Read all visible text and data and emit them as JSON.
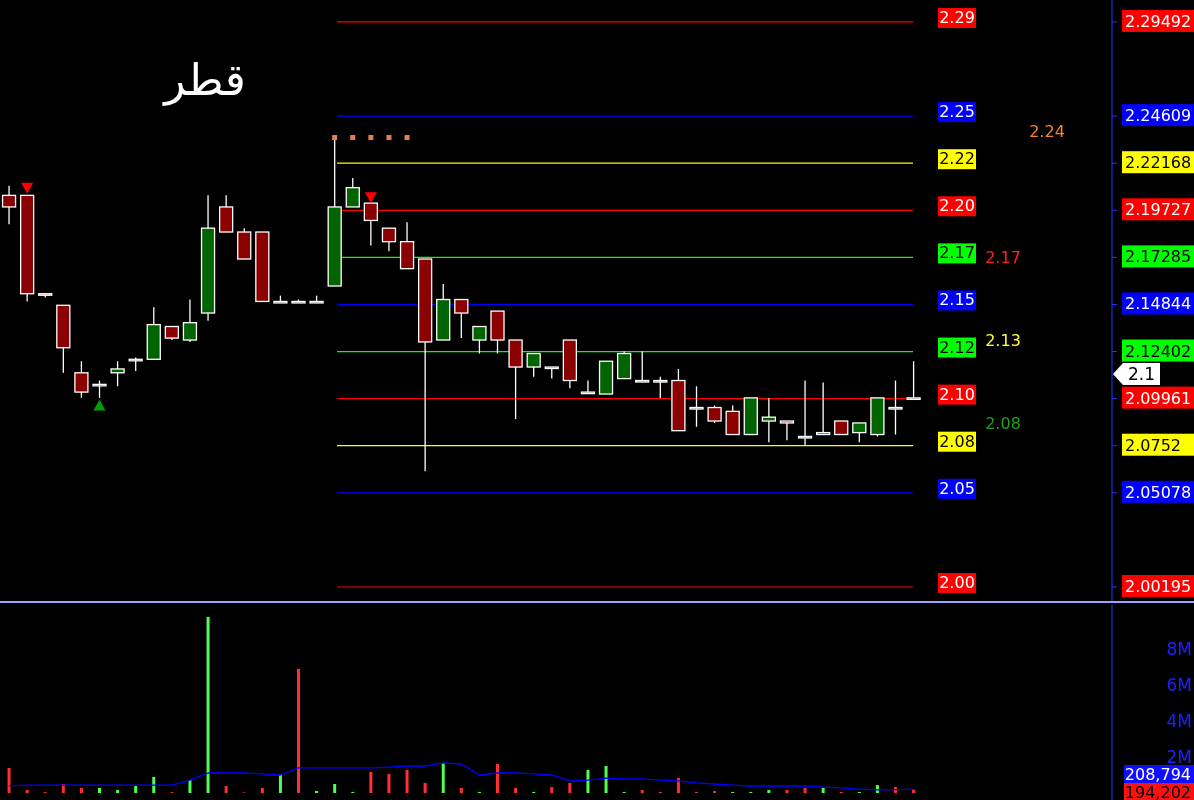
{
  "chart_data": [
    {
      "type": "candlestick",
      "title": "قطر",
      "tick_labels": "y",
      "grid": false,
      "categories": [
        null,
        null,
        null,
        null,
        null,
        null,
        null,
        null,
        null,
        null,
        null,
        null,
        null,
        null,
        null,
        null,
        null,
        null,
        null,
        null,
        null,
        null,
        null,
        null,
        null,
        null,
        null,
        null,
        null,
        null,
        null,
        null,
        null,
        null,
        null,
        null,
        null,
        null,
        null,
        null,
        null,
        null,
        null,
        null,
        null,
        null,
        null,
        null,
        null,
        null,
        null,
        null,
        null,
        null,
        null,
        null,
        null,
        null,
        null,
        null,
        null,
        null,
        null,
        null,
        null,
        null
      ],
      "ohlc": [
        [
          2.205,
          2.21,
          2.19,
          2.199
        ],
        [
          2.205,
          2.205,
          2.15,
          2.154
        ],
        [
          2.154,
          2.154,
          2.152,
          2.154
        ],
        [
          2.148,
          2.148,
          2.113,
          2.126
        ],
        [
          2.113,
          2.119,
          2.1,
          2.103
        ],
        [
          2.107,
          2.109,
          2.1,
          2.107
        ],
        [
          2.113,
          2.119,
          2.106,
          2.115
        ],
        [
          2.12,
          2.121,
          2.114,
          2.12
        ],
        [
          2.12,
          2.147,
          2.12,
          2.138
        ],
        [
          2.137,
          2.137,
          2.13,
          2.131
        ],
        [
          2.13,
          2.151,
          2.129,
          2.139
        ],
        [
          2.144,
          2.205,
          2.14,
          2.188
        ],
        [
          2.199,
          2.205,
          2.186,
          2.186
        ],
        [
          2.186,
          2.188,
          2.172,
          2.172
        ],
        [
          2.186,
          2.186,
          2.15,
          2.15
        ],
        [
          2.15,
          2.153,
          2.15,
          2.15
        ],
        [
          2.15,
          2.151,
          2.15,
          2.15
        ],
        [
          2.15,
          2.153,
          2.15,
          2.15
        ],
        [
          2.158,
          2.235,
          2.158,
          2.199
        ],
        [
          2.199,
          2.214,
          2.199,
          2.209
        ],
        [
          2.201,
          2.201,
          2.179,
          2.192
        ],
        [
          2.188,
          2.188,
          2.176,
          2.181
        ],
        [
          2.181,
          2.191,
          2.167,
          2.167
        ],
        [
          2.172,
          2.172,
          2.062,
          2.129
        ],
        [
          2.13,
          2.159,
          2.13,
          2.151
        ],
        [
          2.151,
          2.151,
          2.131,
          2.144
        ],
        [
          2.13,
          2.137,
          2.123,
          2.137
        ],
        [
          2.145,
          2.145,
          2.123,
          2.13
        ],
        [
          2.13,
          2.13,
          2.089,
          2.116
        ],
        [
          2.116,
          2.123,
          2.111,
          2.123
        ],
        [
          2.116,
          2.116,
          2.11,
          2.116
        ],
        [
          2.13,
          2.13,
          2.105,
          2.109
        ],
        [
          2.103,
          2.109,
          2.102,
          2.103
        ],
        [
          2.102,
          2.119,
          2.102,
          2.119
        ],
        [
          2.11,
          2.124,
          2.11,
          2.123
        ],
        [
          2.109,
          2.124,
          2.109,
          2.109
        ],
        [
          2.109,
          2.111,
          2.1,
          2.109
        ],
        [
          2.109,
          2.115,
          2.083,
          2.083
        ],
        [
          2.095,
          2.106,
          2.085,
          2.095
        ],
        [
          2.095,
          2.096,
          2.087,
          2.088
        ],
        [
          2.093,
          2.096,
          2.081,
          2.081
        ],
        [
          2.081,
          2.1,
          2.081,
          2.1
        ],
        [
          2.088,
          2.1,
          2.077,
          2.09
        ],
        [
          2.088,
          2.088,
          2.078,
          2.087
        ],
        [
          2.08,
          2.109,
          2.075,
          2.08
        ],
        [
          2.081,
          2.108,
          2.081,
          2.082
        ],
        [
          2.088,
          2.088,
          2.081,
          2.081
        ],
        [
          2.082,
          2.087,
          2.077,
          2.087
        ],
        [
          2.081,
          2.1,
          2.08,
          2.1
        ],
        [
          2.095,
          2.109,
          2.081,
          2.095
        ],
        [
          2.1,
          2.119,
          2.1,
          2.1
        ],
        null,
        null,
        null,
        null,
        null,
        null,
        null,
        null,
        null,
        null,
        null,
        null,
        null,
        null,
        null
      ],
      "colors": [
        "#8b0000",
        "#8b0000",
        "#8b0000",
        "#8b0000",
        "#8b0000",
        "#000000",
        "#006400",
        "#000000",
        "#006400",
        "#8b0000",
        "#006400",
        "#006400",
        "#8b0000",
        "#8b0000",
        "#8b0000",
        "#000000",
        "#000000",
        "#000000",
        "#006400",
        "#006400",
        "#8b0000",
        "#8b0000",
        "#8b0000",
        "#8b0000",
        "#006400",
        "#8b0000",
        "#006400",
        "#8b0000",
        "#8b0000",
        "#006400",
        "#000000",
        "#8b0000",
        "#000000",
        "#006400",
        "#006400",
        "#000000",
        "#8b0000",
        "#8b0000",
        "#000000",
        "#8b0000",
        "#8b0000",
        "#006400",
        "#006400",
        "#8b0000",
        "#8b0000",
        "#006400",
        "#8b0000",
        "#006400",
        "#006400",
        "#000000",
        "#000000",
        null,
        null,
        null,
        null,
        null,
        null,
        null,
        null,
        null,
        null,
        null,
        null,
        null,
        null,
        null
      ],
      "ylim": [
        1.9952,
        2.3063
      ],
      "yticks": [
        2.29492,
        2.24609,
        2.22168,
        2.19727,
        2.17285,
        2.14844,
        2.12402,
        2.09961,
        2.0752,
        2.05078,
        2.00195
      ],
      "ref_lines": [
        {
          "axis": "y",
          "value": 2.29492,
          "label": "2.29",
          "color": "#ff0000"
        },
        {
          "axis": "y",
          "value": 2.24609,
          "label": "2.25",
          "color": "#0000ff"
        },
        {
          "axis": "y",
          "value": 2.22168,
          "label": "2.22",
          "color": "#ffff00"
        },
        {
          "axis": "y",
          "value": 2.19727,
          "label": "2.20",
          "color": "#ff0000"
        },
        {
          "axis": "y",
          "value": 2.17285,
          "label": "2.17",
          "color": "#00ff00"
        },
        {
          "axis": "y",
          "value": 2.14844,
          "label": "2.15",
          "color": "#0000ff"
        },
        {
          "axis": "y",
          "value": 2.12402,
          "label": "2.12",
          "color": "#00ff00"
        },
        {
          "axis": "y",
          "value": 2.09961,
          "label": "2.10",
          "color": "#ff0000"
        },
        {
          "axis": "y",
          "value": 2.0752,
          "label": "2.08",
          "color": "#ffff00"
        },
        {
          "axis": "y",
          "value": 2.05078,
          "label": "2.05",
          "color": "#0000ff"
        },
        {
          "axis": "y",
          "value": 2.00195,
          "label": "2.00",
          "color": "#ff0000"
        }
      ],
      "annotations": [
        "2.24",
        "2.17",
        "2.13",
        "2.08",
        "2.1"
      ],
      "series": [
        {
          "type": "scatter",
          "marker": "triangle-down",
          "color": "#ff0000",
          "values": [
            null,
            2.209,
            null,
            null,
            null,
            null,
            null,
            null,
            null,
            null,
            null,
            null,
            null,
            null,
            null,
            null,
            null,
            null,
            null,
            null,
            2.204,
            null,
            null,
            null,
            null,
            null,
            null,
            null,
            null,
            null,
            null,
            null,
            null,
            null,
            null,
            null,
            null,
            null,
            null,
            null,
            null,
            null,
            null,
            null,
            null,
            null,
            null,
            null,
            null,
            null,
            null,
            null,
            null,
            null,
            null,
            null,
            null,
            null,
            null,
            null,
            null,
            null,
            null,
            null,
            null,
            null
          ]
        },
        {
          "type": "scatter",
          "marker": "triangle",
          "color": "#00a000",
          "values": [
            null,
            null,
            null,
            null,
            null,
            2.096,
            null,
            null,
            null,
            null,
            null,
            null,
            null,
            null,
            null,
            null,
            null,
            null,
            null,
            null,
            null,
            null,
            null,
            null,
            null,
            null,
            null,
            null,
            null,
            null,
            null,
            null,
            null,
            null,
            null,
            null,
            null,
            null,
            null,
            null,
            null,
            null,
            null,
            null,
            null,
            null,
            null,
            null,
            null,
            null,
            null,
            null,
            null,
            null,
            null,
            null,
            null,
            null,
            null,
            null,
            null,
            null,
            null,
            null,
            null,
            null
          ]
        },
        {
          "type": "scatter",
          "marker": "square",
          "color": "#e08050",
          "values": [
            null,
            null,
            null,
            null,
            null,
            null,
            null,
            null,
            null,
            null,
            null,
            null,
            null,
            null,
            null,
            null,
            null,
            null,
            2.235,
            2.235,
            2.235,
            2.235,
            2.235,
            null,
            null,
            null,
            null,
            null,
            null,
            null,
            null,
            null,
            null,
            null,
            null,
            null,
            null,
            null,
            null,
            null,
            null,
            null,
            null,
            null,
            null,
            null,
            null,
            null,
            null,
            null,
            null,
            null,
            null,
            null,
            null,
            null,
            null,
            null,
            null,
            null,
            null,
            null,
            null,
            null,
            null,
            null
          ]
        }
      ]
    },
    {
      "type": "bar",
      "tick_labels": "y",
      "categories": [
        null,
        null,
        null,
        null,
        null,
        null,
        null,
        null,
        null,
        null,
        null,
        null,
        null,
        null,
        null,
        null,
        null,
        null,
        null,
        null,
        null,
        null,
        null,
        null,
        null,
        null,
        null,
        null,
        null,
        null,
        null,
        null,
        null,
        null,
        null,
        null,
        null,
        null,
        null,
        null,
        null,
        null,
        null,
        null,
        null,
        null,
        null,
        null,
        null,
        null,
        null,
        null,
        null,
        null,
        null,
        null,
        null,
        null,
        null,
        null,
        null,
        null,
        null,
        null,
        null,
        null
      ],
      "ylim": [
        0,
        10440000
      ],
      "yticks": [
        {
          "value": 2000000,
          "label": "2M"
        },
        {
          "value": 4000000,
          "label": "4M"
        },
        {
          "value": 6000000,
          "label": "6M"
        },
        {
          "value": 8000000,
          "label": "8M"
        }
      ],
      "series": [
        {
          "type": "bar",
          "values": [
            1390000,
            170000,
            50000,
            500000,
            280000,
            280000,
            170000,
            390000,
            890000,
            50000,
            720000,
            9780000,
            390000,
            30000,
            280000,
            1000000,
            6890000,
            110000,
            500000,
            60000,
            1170000,
            1060000,
            1280000,
            560000,
            1670000,
            280000,
            60000,
            1610000,
            280000,
            60000,
            330000,
            560000,
            1280000,
            1500000,
            60000,
            170000,
            60000,
            830000,
            60000,
            110000,
            60000,
            60000,
            170000,
            170000,
            280000,
            280000,
            60000,
            60000,
            440000,
            330000,
            190000,
            null,
            null,
            null,
            null,
            null,
            null,
            null,
            null,
            null,
            null,
            null,
            null,
            null,
            null,
            null
          ],
          "colors": [
            "#ff3030",
            "#ff3030",
            "#ff3030",
            "#ff3030",
            "#ff3030",
            "#50ff50",
            "#50ff50",
            "#50ff50",
            "#50ff50",
            "#ff3030",
            "#50ff50",
            "#50ff50",
            "#ff3030",
            "#ff3030",
            "#ff3030",
            "#50ff50",
            "#ff3030",
            "#50ff50",
            "#50ff50",
            "#50ff50",
            "#ff3030",
            "#ff3030",
            "#ff3030",
            "#ff3030",
            "#50ff50",
            "#ff3030",
            "#50ff50",
            "#ff3030",
            "#ff3030",
            "#50ff50",
            "#ff3030",
            "#ff3030",
            "#50ff50",
            "#50ff50",
            "#50ff50",
            "#ff3030",
            "#ff3030",
            "#ff3030",
            "#ff3030",
            "#ff3030",
            "#50ff50",
            "#50ff50",
            "#50ff50",
            "#ff3030",
            "#ff3030",
            "#50ff50",
            "#ff3030",
            "#50ff50",
            "#50ff50",
            "#ff3030",
            "#ff3030",
            null,
            null,
            null,
            null,
            null,
            null,
            null,
            null,
            null,
            null,
            null,
            null,
            null,
            null,
            null
          ]
        },
        {
          "type": "line",
          "color": "#0000ff",
          "values": [
            400000,
            440000,
            440000,
            440000,
            440000,
            440000,
            440000,
            440000,
            440000,
            440000,
            720000,
            1110000,
            1110000,
            1110000,
            1060000,
            1000000,
            1390000,
            1390000,
            1390000,
            1390000,
            1390000,
            1440000,
            1500000,
            1500000,
            1670000,
            1610000,
            1000000,
            1110000,
            1110000,
            1060000,
            1000000,
            670000,
            720000,
            830000,
            780000,
            780000,
            720000,
            670000,
            560000,
            500000,
            440000,
            390000,
            390000,
            390000,
            390000,
            330000,
            280000,
            220000,
            170000,
            190000,
            210000,
            null,
            null,
            null,
            null,
            null,
            null,
            null,
            null,
            null,
            null,
            null,
            null,
            null,
            null,
            null
          ]
        }
      ],
      "annotations": [
        "208,794",
        "194,202"
      ]
    }
  ]
}
